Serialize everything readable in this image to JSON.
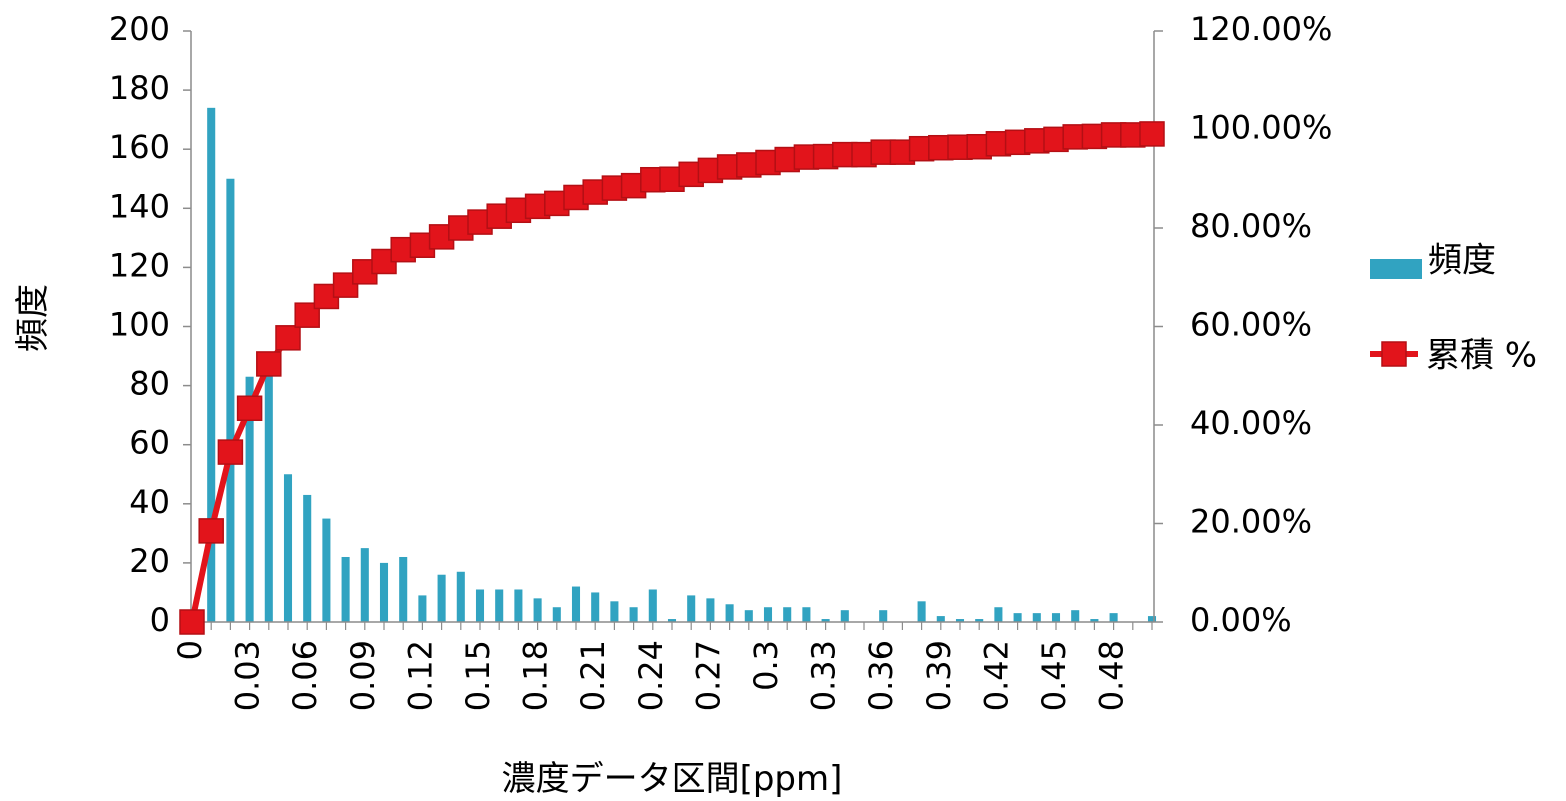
{
  "chart_data": {
    "type": "bar",
    "title": "",
    "xlabel": "濃度データ区間[ppm]",
    "ylabel": "頻度",
    "y2label": "",
    "ylim": [
      0,
      200
    ],
    "y2lim": [
      0,
      1.2
    ],
    "yticks": [
      "0",
      "20",
      "40",
      "60",
      "80",
      "100",
      "120",
      "140",
      "160",
      "180",
      "200"
    ],
    "y2ticks": [
      "0.00%",
      "20.00%",
      "40.00%",
      "60.00%",
      "80.00%",
      "100.00%",
      "120.00%"
    ],
    "xticks": [
      "0",
      "0.03",
      "0.06",
      "0.09",
      "0.12",
      "0.15",
      "0.18",
      "0.21",
      "0.24",
      "0.27",
      "0.3",
      "0.33",
      "0.36",
      "0.39",
      "0.42",
      "0.45",
      "0.48"
    ],
    "categories": [
      "0",
      "0.01",
      "0.02",
      "0.03",
      "0.04",
      "0.05",
      "0.06",
      "0.07",
      "0.08",
      "0.09",
      "0.1",
      "0.11",
      "0.12",
      "0.13",
      "0.14",
      "0.15",
      "0.16",
      "0.17",
      "0.18",
      "0.19",
      "0.2",
      "0.21",
      "0.22",
      "0.23",
      "0.24",
      "0.25",
      "0.26",
      "0.27",
      "0.28",
      "0.29",
      "0.3",
      "0.31",
      "0.32",
      "0.33",
      "0.34",
      "0.35",
      "0.36",
      "0.37",
      "0.38",
      "0.39",
      "0.4",
      "0.41",
      "0.42",
      "0.43",
      "0.44",
      "0.45",
      "0.46",
      "0.47",
      "0.48",
      "0.49",
      "0.5"
    ],
    "legend_position": "right",
    "series": [
      {
        "name": "頻度",
        "type": "bar",
        "axis": "left",
        "color": "#31a3c1",
        "values": [
          0,
          174,
          150,
          83,
          85,
          50,
          43,
          35,
          22,
          25,
          20,
          22,
          9,
          16,
          17,
          11,
          11,
          11,
          8,
          5,
          12,
          10,
          7,
          5,
          11,
          1,
          9,
          8,
          6,
          4,
          5,
          5,
          5,
          1,
          4,
          0,
          4,
          0,
          7,
          2,
          1,
          1,
          5,
          3,
          3,
          3,
          4,
          1,
          3,
          0,
          2
        ]
      },
      {
        "name": "累積 %",
        "type": "line",
        "axis": "right",
        "color": "#e2141b",
        "marker": "square",
        "values": [
          0,
          0.185,
          0.345,
          0.434,
          0.524,
          0.577,
          0.623,
          0.661,
          0.684,
          0.711,
          0.732,
          0.756,
          0.765,
          0.782,
          0.8,
          0.812,
          0.824,
          0.836,
          0.844,
          0.85,
          0.862,
          0.873,
          0.881,
          0.886,
          0.898,
          0.899,
          0.909,
          0.917,
          0.924,
          0.928,
          0.933,
          0.939,
          0.944,
          0.945,
          0.949,
          0.949,
          0.954,
          0.954,
          0.961,
          0.963,
          0.964,
          0.965,
          0.971,
          0.974,
          0.977,
          0.98,
          0.985,
          0.986,
          0.989,
          0.989,
          0.991
        ]
      }
    ]
  }
}
